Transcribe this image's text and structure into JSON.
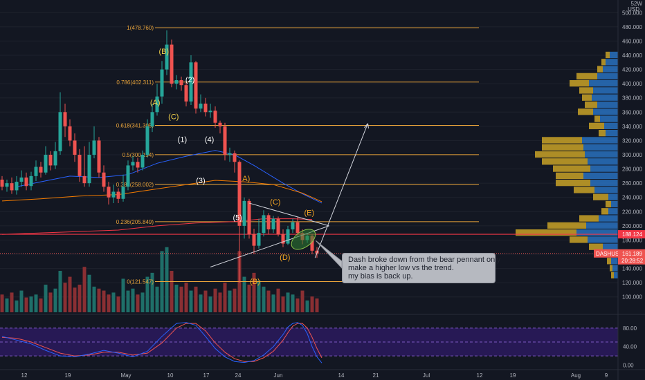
{
  "chart_data": {
    "type": "candlestick",
    "symbol": "DASHUSD",
    "currency": "USD",
    "axis_header": [
      "52W",
      "USD"
    ],
    "y_ticks": [
      "500.000",
      "480.000",
      "460.000",
      "440.000",
      "420.000",
      "400.000",
      "380.000",
      "360.000",
      "340.000",
      "320.000",
      "300.000",
      "280.000",
      "260.000",
      "240.000",
      "220.000",
      "200.000",
      "180.000",
      "160.000",
      "140.000",
      "120.000",
      "100.000"
    ],
    "x_ticks": [
      "12",
      "19",
      "May",
      "10",
      "17",
      "24",
      "Jun",
      "14",
      "21",
      "Jul",
      "12",
      "19",
      "Aug",
      "9"
    ],
    "ylim": [
      90,
      510
    ],
    "last_price": {
      "label": "161.189",
      "countdown": "20:28:52",
      "symbol_tag": "DASHUSD",
      "value": 161.189
    },
    "horizontal_line": {
      "label": "188.124",
      "value": 188.124
    },
    "fib_levels": [
      {
        "ratio_label": "1(478.760)",
        "price": 478.76
      },
      {
        "ratio_label": "0.786(402.311)",
        "price": 402.311
      },
      {
        "ratio_label": "0.618(341.305)",
        "price": 341.305
      },
      {
        "ratio_label": "0.5(300.154)",
        "price": 300.154
      },
      {
        "ratio_label": "0.382(258.002)",
        "price": 258.002
      },
      {
        "ratio_label": "0.236(205.849)",
        "price": 205.849
      },
      {
        "ratio_label": "0(121.547)",
        "price": 121.547
      }
    ],
    "candles": [
      {
        "o": 265,
        "c": 255,
        "h": 270,
        "l": 250
      },
      {
        "o": 255,
        "c": 260,
        "h": 265,
        "l": 248
      },
      {
        "o": 260,
        "c": 250,
        "h": 268,
        "l": 245
      },
      {
        "o": 250,
        "c": 262,
        "h": 270,
        "l": 244
      },
      {
        "o": 262,
        "c": 268,
        "h": 278,
        "l": 255
      },
      {
        "o": 268,
        "c": 256,
        "h": 275,
        "l": 250
      },
      {
        "o": 256,
        "c": 270,
        "h": 276,
        "l": 250
      },
      {
        "o": 270,
        "c": 283,
        "h": 292,
        "l": 263
      },
      {
        "o": 283,
        "c": 275,
        "h": 290,
        "l": 268
      },
      {
        "o": 275,
        "c": 300,
        "h": 312,
        "l": 272
      },
      {
        "o": 300,
        "c": 285,
        "h": 305,
        "l": 278
      },
      {
        "o": 285,
        "c": 305,
        "h": 318,
        "l": 280
      },
      {
        "o": 305,
        "c": 360,
        "h": 388,
        "l": 300
      },
      {
        "o": 360,
        "c": 340,
        "h": 372,
        "l": 325
      },
      {
        "o": 340,
        "c": 320,
        "h": 350,
        "l": 312
      },
      {
        "o": 320,
        "c": 300,
        "h": 330,
        "l": 290
      },
      {
        "o": 300,
        "c": 270,
        "h": 308,
        "l": 262
      },
      {
        "o": 270,
        "c": 260,
        "h": 312,
        "l": 255
      },
      {
        "o": 260,
        "c": 300,
        "h": 318,
        "l": 255
      },
      {
        "o": 300,
        "c": 320,
        "h": 340,
        "l": 295
      },
      {
        "o": 320,
        "c": 275,
        "h": 325,
        "l": 268
      },
      {
        "o": 275,
        "c": 255,
        "h": 285,
        "l": 248
      },
      {
        "o": 255,
        "c": 240,
        "h": 262,
        "l": 230
      },
      {
        "o": 240,
        "c": 248,
        "h": 258,
        "l": 232
      },
      {
        "o": 248,
        "c": 238,
        "h": 253,
        "l": 232
      },
      {
        "o": 238,
        "c": 255,
        "h": 272,
        "l": 234
      },
      {
        "o": 255,
        "c": 285,
        "h": 292,
        "l": 250
      },
      {
        "o": 285,
        "c": 290,
        "h": 298,
        "l": 278
      },
      {
        "o": 290,
        "c": 282,
        "h": 296,
        "l": 275
      },
      {
        "o": 282,
        "c": 300,
        "h": 306,
        "l": 278
      },
      {
        "o": 300,
        "c": 340,
        "h": 350,
        "l": 296
      },
      {
        "o": 340,
        "c": 360,
        "h": 372,
        "l": 332
      },
      {
        "o": 360,
        "c": 382,
        "h": 400,
        "l": 355
      },
      {
        "o": 382,
        "c": 420,
        "h": 432,
        "l": 372
      },
      {
        "o": 420,
        "c": 455,
        "h": 475,
        "l": 412
      },
      {
        "o": 455,
        "c": 400,
        "h": 462,
        "l": 395
      },
      {
        "o": 400,
        "c": 405,
        "h": 412,
        "l": 392
      },
      {
        "o": 405,
        "c": 398,
        "h": 410,
        "l": 390
      },
      {
        "o": 398,
        "c": 375,
        "h": 402,
        "l": 368
      },
      {
        "o": 375,
        "c": 430,
        "h": 440,
        "l": 370
      },
      {
        "o": 430,
        "c": 365,
        "h": 432,
        "l": 358
      },
      {
        "o": 365,
        "c": 372,
        "h": 385,
        "l": 360
      },
      {
        "o": 372,
        "c": 360,
        "h": 380,
        "l": 354
      },
      {
        "o": 360,
        "c": 362,
        "h": 372,
        "l": 352
      },
      {
        "o": 362,
        "c": 345,
        "h": 368,
        "l": 338
      },
      {
        "o": 345,
        "c": 340,
        "h": 348,
        "l": 330
      },
      {
        "o": 340,
        "c": 300,
        "h": 345,
        "l": 292
      },
      {
        "o": 300,
        "c": 302,
        "h": 310,
        "l": 290
      },
      {
        "o": 302,
        "c": 290,
        "h": 306,
        "l": 275
      },
      {
        "o": 290,
        "c": 200,
        "h": 292,
        "l": 120
      },
      {
        "o": 200,
        "c": 235,
        "h": 240,
        "l": 182
      },
      {
        "o": 235,
        "c": 188,
        "h": 238,
        "l": 182
      },
      {
        "o": 188,
        "c": 172,
        "h": 196,
        "l": 160
      },
      {
        "o": 172,
        "c": 190,
        "h": 210,
        "l": 168
      },
      {
        "o": 190,
        "c": 215,
        "h": 222,
        "l": 185
      },
      {
        "o": 215,
        "c": 195,
        "h": 218,
        "l": 188
      },
      {
        "o": 195,
        "c": 210,
        "h": 214,
        "l": 190
      },
      {
        "o": 210,
        "c": 188,
        "h": 213,
        "l": 185
      },
      {
        "o": 188,
        "c": 175,
        "h": 195,
        "l": 170
      },
      {
        "o": 175,
        "c": 195,
        "h": 200,
        "l": 173
      },
      {
        "o": 195,
        "c": 205,
        "h": 210,
        "l": 190
      },
      {
        "o": 205,
        "c": 190,
        "h": 212,
        "l": 186
      },
      {
        "o": 190,
        "c": 180,
        "h": 195,
        "l": 174
      },
      {
        "o": 180,
        "c": 186,
        "h": 190,
        "l": 176
      },
      {
        "o": 186,
        "c": 165,
        "h": 188,
        "l": 160
      },
      {
        "o": 165,
        "c": 161,
        "h": 170,
        "l": 155
      }
    ],
    "volume": [
      18,
      14,
      20,
      12,
      22,
      15,
      16,
      18,
      14,
      28,
      20,
      24,
      42,
      30,
      36,
      25,
      28,
      46,
      38,
      26,
      24,
      22,
      18,
      20,
      16,
      34,
      22,
      24,
      18,
      20,
      36,
      40,
      26,
      62,
      66,
      42,
      28,
      26,
      30,
      22,
      26,
      18,
      22,
      16,
      24,
      20,
      30,
      22,
      24,
      62,
      36,
      28,
      40,
      32,
      26,
      22,
      18,
      24,
      16,
      20,
      18,
      14,
      22,
      12,
      16,
      14
    ],
    "volume_scale": {
      "max": 70
    },
    "ma_blue": [
      [
        3,
        255
      ],
      [
        8,
        262
      ],
      [
        14,
        270
      ],
      [
        20,
        268
      ],
      [
        26,
        272
      ],
      [
        32,
        288
      ],
      [
        38,
        298
      ],
      [
        44,
        306
      ],
      [
        48,
        300
      ],
      [
        52,
        285
      ],
      [
        58,
        260
      ],
      [
        62,
        245
      ],
      [
        66,
        232
      ]
    ],
    "ma_orange": [
      [
        0,
        235
      ],
      [
        8,
        238
      ],
      [
        16,
        242
      ],
      [
        24,
        244
      ],
      [
        32,
        252
      ],
      [
        38,
        258
      ],
      [
        44,
        264
      ],
      [
        50,
        262
      ],
      [
        56,
        258
      ],
      [
        62,
        246
      ],
      [
        66,
        234
      ]
    ],
    "ma_red": [
      [
        0,
        188
      ],
      [
        8,
        190
      ],
      [
        16,
        192
      ],
      [
        24,
        194
      ],
      [
        32,
        200
      ],
      [
        40,
        204
      ],
      [
        48,
        206
      ],
      [
        54,
        210
      ],
      [
        60,
        210
      ],
      [
        64,
        209
      ]
    ],
    "ellipse": {
      "cx_index": 62.2,
      "cy_price": 181,
      "w_index": 2.8,
      "h_price": 22
    },
    "projection": {
      "from": [
        64.6,
        155
      ],
      "to": [
        75.5,
        344
      ]
    },
    "pennant_upper": {
      "from": [
        51,
        232
      ],
      "to": [
        67.5,
        200
      ]
    },
    "pennant_lower": {
      "from": [
        43,
        142
      ],
      "to": [
        67.5,
        200
      ]
    },
    "wave_labels_white": [
      {
        "t": "(2)",
        "x": 38.8,
        "y": 402
      },
      {
        "t": "(1)",
        "x": 37.2,
        "y": 318
      },
      {
        "t": "(4)",
        "x": 42.8,
        "y": 318
      },
      {
        "t": "(3)",
        "x": 41.0,
        "y": 260
      },
      {
        "t": "(5)",
        "x": 48.6,
        "y": 208
      }
    ],
    "wave_labels_yellow": [
      {
        "t": "(B)",
        "x": 33.4,
        "y": 442
      },
      {
        "t": "(A)",
        "x": 31.6,
        "y": 370
      },
      {
        "t": "(C)",
        "x": 35.4,
        "y": 350
      }
    ],
    "wave_labels_orange": [
      {
        "t": "A)",
        "x": 50.4,
        "y": 263
      },
      {
        "t": "(C)",
        "x": 56.4,
        "y": 230
      },
      {
        "t": "(E)",
        "x": 63.4,
        "y": 215
      },
      {
        "t": "(D)",
        "x": 58.4,
        "y": 152
      },
      {
        "t": "(B)",
        "x": 52.2,
        "y": 118
      }
    ],
    "volume_profile": [
      {
        "p": 440,
        "up": 6,
        "dn": 12
      },
      {
        "p": 430,
        "up": 6,
        "dn": 18
      },
      {
        "p": 420,
        "up": 8,
        "dn": 22
      },
      {
        "p": 410,
        "up": 30,
        "dn": 30
      },
      {
        "p": 400,
        "up": 28,
        "dn": 42
      },
      {
        "p": 390,
        "up": 20,
        "dn": 36
      },
      {
        "p": 380,
        "up": 14,
        "dn": 38
      },
      {
        "p": 370,
        "up": 18,
        "dn": 30
      },
      {
        "p": 360,
        "up": 22,
        "dn": 36
      },
      {
        "p": 350,
        "up": 8,
        "dn": 26
      },
      {
        "p": 340,
        "up": 22,
        "dn": 20
      },
      {
        "p": 330,
        "up": 10,
        "dn": 18
      },
      {
        "p": 320,
        "up": 58,
        "dn": 52
      },
      {
        "p": 310,
        "up": 60,
        "dn": 50
      },
      {
        "p": 300,
        "up": 72,
        "dn": 48
      },
      {
        "p": 290,
        "up": 66,
        "dn": 44
      },
      {
        "p": 280,
        "up": 54,
        "dn": 40
      },
      {
        "p": 270,
        "up": 40,
        "dn": 50
      },
      {
        "p": 260,
        "up": 50,
        "dn": 40
      },
      {
        "p": 250,
        "up": 30,
        "dn": 34
      },
      {
        "p": 240,
        "up": 22,
        "dn": 14
      },
      {
        "p": 230,
        "up": 8,
        "dn": 10
      },
      {
        "p": 220,
        "up": 10,
        "dn": 14
      },
      {
        "p": 210,
        "up": 28,
        "dn": 28
      },
      {
        "p": 200,
        "up": 56,
        "dn": 46
      },
      {
        "p": 190,
        "up": 88,
        "dn": 60
      },
      {
        "p": 180,
        "up": 26,
        "dn": 44
      },
      {
        "p": 170,
        "up": 20,
        "dn": 22
      },
      {
        "p": 160,
        "up": 14,
        "dn": 16
      },
      {
        "p": 150,
        "up": 6,
        "dn": 10
      },
      {
        "p": 140,
        "up": 4,
        "dn": 8
      },
      {
        "p": 130,
        "up": 4,
        "dn": 6
      }
    ],
    "stoch": {
      "y_ticks": [
        "80.00",
        "40.00",
        "0.00"
      ],
      "ylim": [
        -5,
        105
      ],
      "band": [
        20,
        80
      ],
      "k": [
        [
          0,
          62
        ],
        [
          3,
          54
        ],
        [
          6,
          46
        ],
        [
          9,
          32
        ],
        [
          12,
          20
        ],
        [
          15,
          18
        ],
        [
          18,
          24
        ],
        [
          21,
          32
        ],
        [
          24,
          26
        ],
        [
          27,
          18
        ],
        [
          30,
          30
        ],
        [
          33,
          62
        ],
        [
          36,
          90
        ],
        [
          38,
          92
        ],
        [
          40,
          86
        ],
        [
          42,
          62
        ],
        [
          44,
          36
        ],
        [
          46,
          18
        ],
        [
          48,
          8
        ],
        [
          50,
          6
        ],
        [
          52,
          10
        ],
        [
          54,
          22
        ],
        [
          56,
          40
        ],
        [
          58,
          66
        ],
        [
          59,
          82
        ],
        [
          60,
          90
        ],
        [
          61,
          92
        ],
        [
          62,
          86
        ],
        [
          63,
          68
        ],
        [
          64,
          40
        ],
        [
          65,
          18
        ],
        [
          66,
          5
        ]
      ],
      "d": [
        [
          0,
          60
        ],
        [
          3,
          58
        ],
        [
          6,
          50
        ],
        [
          9,
          38
        ],
        [
          12,
          26
        ],
        [
          15,
          20
        ],
        [
          18,
          22
        ],
        [
          21,
          28
        ],
        [
          24,
          28
        ],
        [
          27,
          22
        ],
        [
          30,
          26
        ],
        [
          33,
          48
        ],
        [
          36,
          80
        ],
        [
          38,
          90
        ],
        [
          40,
          90
        ],
        [
          42,
          74
        ],
        [
          44,
          48
        ],
        [
          46,
          28
        ],
        [
          48,
          14
        ],
        [
          50,
          8
        ],
        [
          52,
          8
        ],
        [
          54,
          16
        ],
        [
          56,
          30
        ],
        [
          58,
          54
        ],
        [
          59,
          70
        ],
        [
          60,
          84
        ],
        [
          61,
          90
        ],
        [
          62,
          90
        ],
        [
          63,
          80
        ],
        [
          64,
          60
        ],
        [
          65,
          36
        ],
        [
          66,
          16
        ]
      ]
    }
  },
  "annotation_note": {
    "lines": [
      "Dash broke down from the bear pennant only",
      "make a higher low vs the trend.",
      "my bias is back up."
    ]
  },
  "colors": {
    "background": "#131722",
    "up": "#26a69a",
    "down": "#ef5350",
    "up_volume": "#1f6f69",
    "down_volume": "#8a2f33",
    "fib": "#e8a33a",
    "red_line": "#f23645",
    "blue_ma": "#2962ff",
    "orange_ma": "#f57c00",
    "stoch_k": "#2962ff",
    "stoch_d": "#ef5350",
    "stoch_band": "#311b6b",
    "vp_up": "#c9a227",
    "vp_down": "#2a77c9",
    "ellipse": "#2e7d32"
  }
}
